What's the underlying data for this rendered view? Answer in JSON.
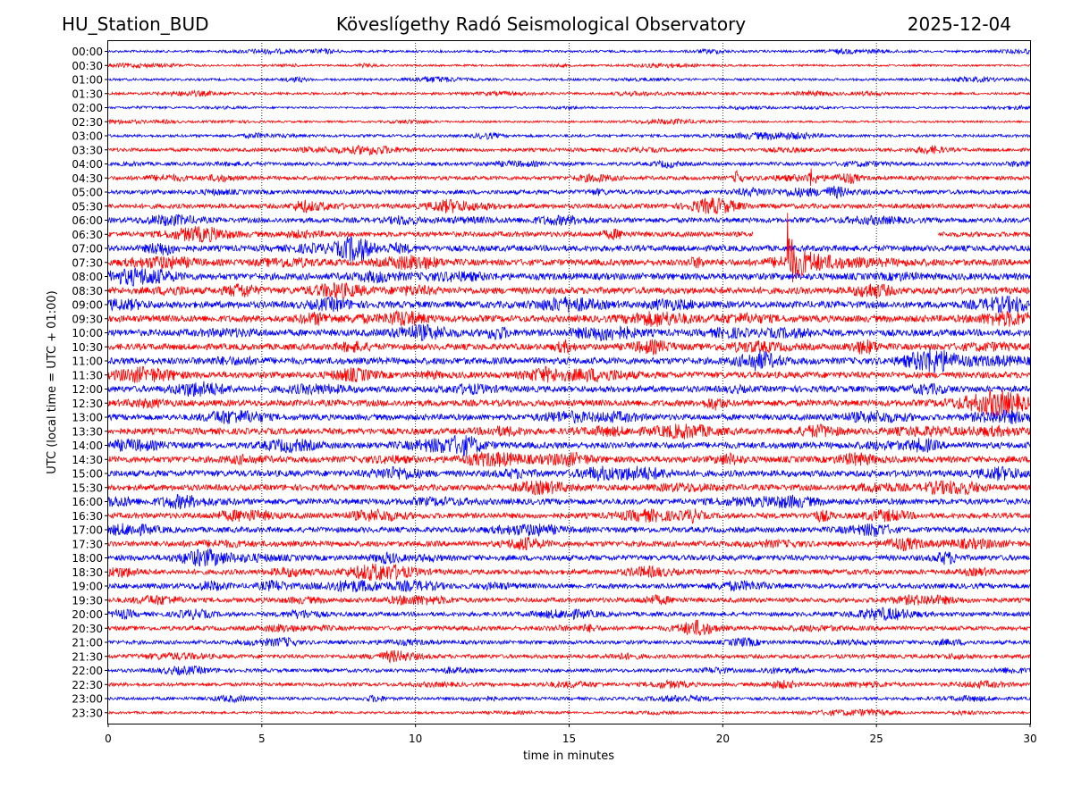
{
  "header": {
    "station": "HU_Station_BUD",
    "observatory": "Köveslígethy Radó Seismological Observatory",
    "date": "2025-12-04"
  },
  "chart_data": {
    "type": "line",
    "title": "Köveslígethy Radó Seismological Observatory",
    "xlabel": "time in minutes",
    "ylabel": "UTC (local time = UTC + 01:00)",
    "xlim": [
      0,
      30
    ],
    "x_ticks": [
      0,
      5,
      10,
      15,
      20,
      25,
      30
    ],
    "grid": "vertical dotted lines at 5-minute ticks",
    "legend": "none",
    "colors": {
      "even_rows": "#0000ff",
      "odd_rows": "#ff0000"
    },
    "rows": [
      "00:00",
      "00:30",
      "01:00",
      "01:30",
      "02:00",
      "02:30",
      "03:00",
      "03:30",
      "04:00",
      "04:30",
      "05:00",
      "05:30",
      "06:00",
      "06:30",
      "07:00",
      "07:30",
      "08:00",
      "08:30",
      "09:00",
      "09:30",
      "10:00",
      "10:30",
      "11:00",
      "11:30",
      "12:00",
      "12:30",
      "13:00",
      "13:30",
      "14:00",
      "14:30",
      "15:00",
      "15:30",
      "16:00",
      "16:30",
      "17:00",
      "17:30",
      "18:00",
      "18:30",
      "19:00",
      "19:30",
      "20:00",
      "20:30",
      "21:00",
      "21:30",
      "22:00",
      "22:30",
      "23:00",
      "23:30"
    ],
    "noise_level": [
      0.6,
      0.5,
      0.6,
      0.6,
      0.5,
      0.5,
      0.7,
      0.9,
      0.9,
      1.0,
      1.1,
      1.2,
      1.3,
      1.3,
      1.5,
      1.6,
      1.7,
      1.7,
      1.7,
      1.7,
      1.7,
      1.6,
      1.7,
      1.6,
      1.6,
      1.6,
      1.5,
      1.6,
      1.6,
      1.6,
      1.6,
      1.5,
      1.5,
      1.4,
      1.4,
      1.4,
      1.4,
      1.3,
      1.3,
      1.2,
      1.1,
      1.1,
      1.0,
      1.0,
      0.9,
      0.9,
      0.8,
      0.6
    ],
    "annotations": [
      {
        "row": "06:30",
        "type": "data gap",
        "x_start": 21.0,
        "x_end": 27.0
      },
      {
        "row": "07:30",
        "type": "earthquake",
        "onset_minute": 22.1,
        "coda_end_minute": 26.0
      },
      {
        "row": "04:30",
        "type": "local event",
        "minute": 20.5
      },
      {
        "row": "04:30",
        "type": "local event",
        "minute": 22.9
      },
      {
        "row": "20:30",
        "type": "burst",
        "minute": 19.2
      }
    ]
  }
}
